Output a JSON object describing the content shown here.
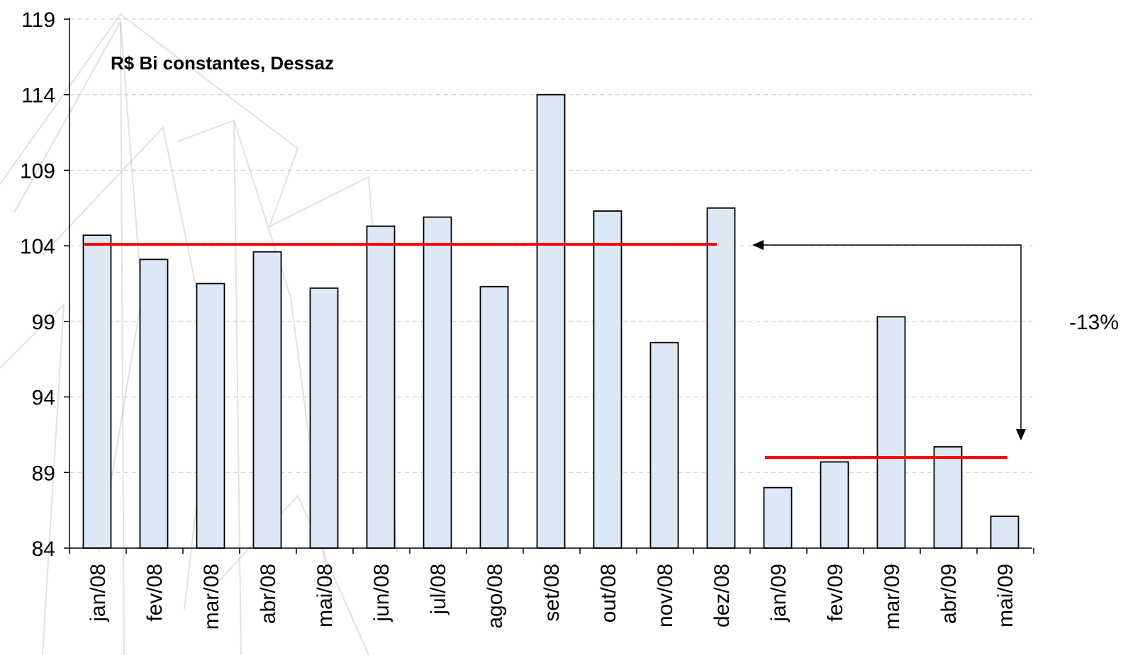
{
  "chart_data": {
    "type": "bar",
    "title": "",
    "subtitle": "R$ Bi constantes, Dessaz",
    "xlabel": "",
    "ylabel": "",
    "ylim": [
      84,
      119
    ],
    "yticks": [
      "84",
      "89",
      "94",
      "99",
      "104",
      "109",
      "114",
      "119"
    ],
    "grid": true,
    "categories": [
      "jan/08",
      "fev/08",
      "mar/08",
      "abr/08",
      "mai/08",
      "jun/08",
      "jul/08",
      "ago/08",
      "set/08",
      "out/08",
      "nov/08",
      "dez/08",
      "jan/09",
      "fev/09",
      "mar/09",
      "abr/09",
      "mai/09"
    ],
    "values": [
      104.7,
      103.1,
      101.5,
      103.6,
      101.2,
      105.3,
      105.9,
      101.3,
      114.0,
      106.3,
      97.6,
      106.5,
      88.0,
      89.7,
      99.3,
      90.7,
      86.1
    ],
    "reference_lines": [
      {
        "value": 104.1,
        "from": "jan/08",
        "to": "dez/08",
        "color": "#ff0000"
      },
      {
        "value": 90.0,
        "from": "jan/09",
        "to": "mai/09",
        "color": "#ff0000"
      }
    ],
    "annotation": {
      "text": "-13%"
    },
    "colors": {
      "bar_fill": "#dde8f5",
      "bar_edge": "#000000",
      "reference": "#ff0000",
      "grid": "#c8c8c8"
    }
  }
}
